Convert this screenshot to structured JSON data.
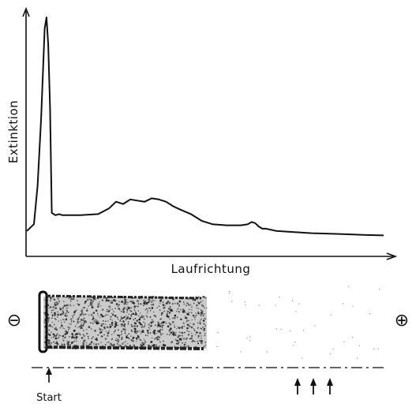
{
  "chart_data": {
    "type": "line",
    "title": "",
    "xlabel": "Laufrichtung",
    "ylabel": "Extinktion",
    "grid": false,
    "legend": "none",
    "xlim": [
      0,
      100
    ],
    "ylim": [
      0,
      100
    ],
    "series": [
      {
        "x": [
          0,
          2,
          3,
          4,
          5,
          5.5,
          6,
          6.5,
          7,
          8,
          9,
          10,
          15,
          20,
          23,
          25,
          27,
          29,
          31,
          33,
          35,
          37,
          39,
          41,
          43,
          46,
          49,
          52,
          56,
          60,
          62,
          63,
          64,
          65,
          66,
          67,
          70,
          75,
          80,
          85,
          90,
          95,
          100
        ],
        "y": [
          5,
          8,
          25,
          55,
          95,
          100,
          88,
          60,
          13,
          12,
          12.5,
          12,
          12,
          12.5,
          15,
          18,
          17,
          19,
          18.5,
          18,
          19.5,
          19,
          18,
          16,
          14.5,
          12.5,
          9.5,
          8,
          7.5,
          7.5,
          8,
          9,
          8.5,
          7,
          6,
          6,
          5,
          4.5,
          4,
          3.8,
          3.5,
          3.2,
          3
        ]
      }
    ]
  },
  "electrophoresis": {
    "minus_symbol": "⊖",
    "plus_symbol": "⊕",
    "start_label": "Start",
    "marker_count": 3
  }
}
